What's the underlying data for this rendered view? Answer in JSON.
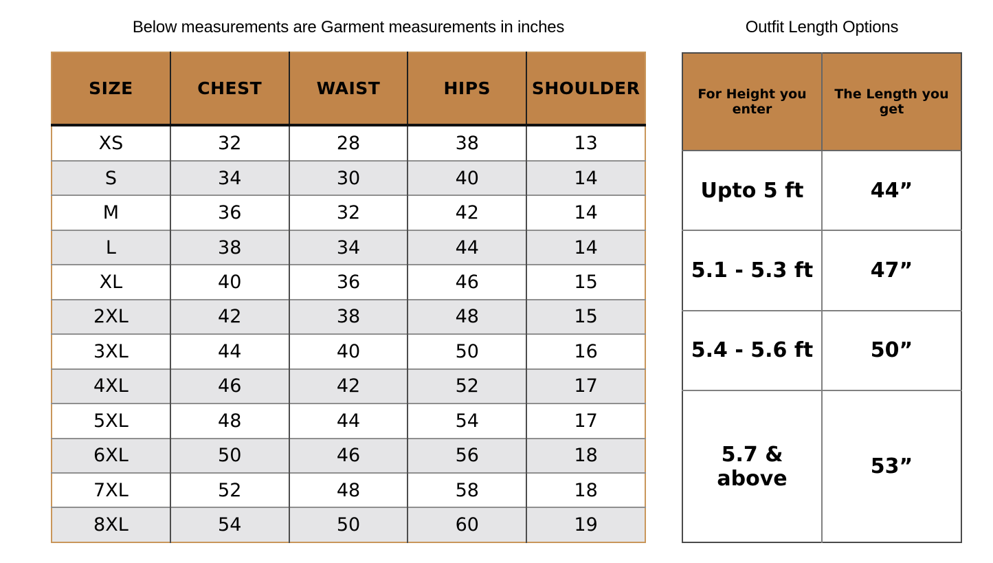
{
  "colors": {
    "header_bg": "#c1854a",
    "alt_row_bg": "#e5e5e7",
    "left_table_border": "#c9965a",
    "right_table_border": "#4a4a4a",
    "grid_gray": "#808080",
    "dark_line": "#111111",
    "text_color": "#000000"
  },
  "chart_data": [
    {
      "type": "table",
      "title": "Below measurements are Garment measurements in inches",
      "columns": [
        "SIZE",
        "CHEST",
        "WAIST",
        "HIPS",
        "SHOULDER"
      ],
      "rows": [
        [
          "XS",
          "32",
          "28",
          "38",
          "13"
        ],
        [
          "S",
          "34",
          "30",
          "40",
          "14"
        ],
        [
          "M",
          "36",
          "32",
          "42",
          "14"
        ],
        [
          "L",
          "38",
          "34",
          "44",
          "14"
        ],
        [
          "XL",
          "40",
          "36",
          "46",
          "15"
        ],
        [
          "2XL",
          "42",
          "38",
          "48",
          "15"
        ],
        [
          "3XL",
          "44",
          "40",
          "50",
          "16"
        ],
        [
          "4XL",
          "46",
          "42",
          "52",
          "17"
        ],
        [
          "5XL",
          "48",
          "44",
          "54",
          "17"
        ],
        [
          "6XL",
          "50",
          "46",
          "56",
          "18"
        ],
        [
          "7XL",
          "52",
          "48",
          "58",
          "18"
        ],
        [
          "8XL",
          "54",
          "50",
          "60",
          "19"
        ]
      ],
      "layout_hints": {
        "alternating_rows": true,
        "units": "inches"
      }
    },
    {
      "type": "table",
      "title": "Outfit Length Options",
      "columns": [
        "For Height you enter",
        "The Length you get"
      ],
      "rows": [
        [
          "Upto 5 ft",
          "44”"
        ],
        [
          "5.1 - 5.3 ft",
          "47”"
        ],
        [
          "5.4 - 5.6 ft",
          "50”"
        ],
        [
          "5.7 & above",
          "53”"
        ]
      ],
      "layout_hints": {
        "alternating_rows": false
      }
    }
  ]
}
